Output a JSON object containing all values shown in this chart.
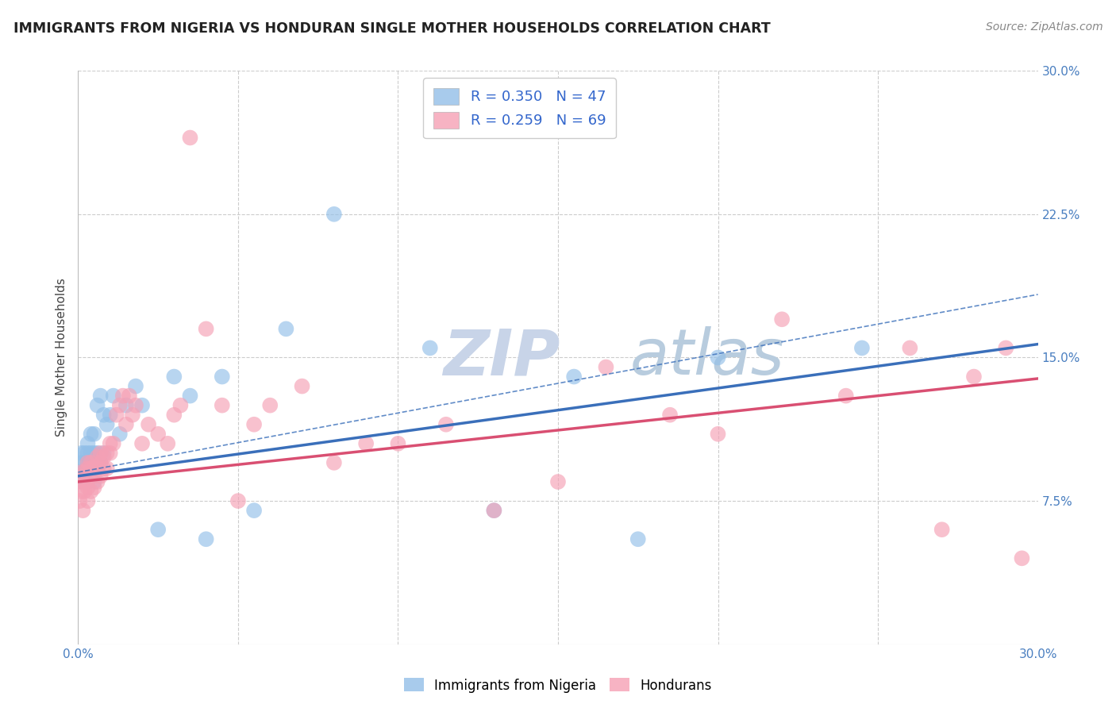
{
  "title": "IMMIGRANTS FROM NIGERIA VS HONDURAN SINGLE MOTHER HOUSEHOLDS CORRELATION CHART",
  "source": "Source: ZipAtlas.com",
  "ylabel": "Single Mother Households",
  "xlim": [
    0.0,
    0.3
  ],
  "ylim": [
    0.0,
    0.3
  ],
  "ytick_labels_right": [
    "30.0%",
    "22.5%",
    "15.0%",
    "7.5%"
  ],
  "ytick_positions_right": [
    0.3,
    0.225,
    0.15,
    0.075
  ],
  "nigeria_color": "#92bfe8",
  "honduras_color": "#f5a0b5",
  "nigeria_line_color": "#3a6fba",
  "honduras_line_color": "#d94f72",
  "grid_color": "#cccccc",
  "watermark_color": "#c8d4e8",
  "nigeria_label": "R = 0.350   N = 47",
  "honduras_label": "R = 0.259   N = 69",
  "legend_nigeria_color": "#92bfe8",
  "legend_honduras_color": "#f5a0b5",
  "bottom_legend_nigeria": "Immigrants from Nigeria",
  "bottom_legend_honduras": "Hondurans",
  "nigeria_x": [
    0.0005,
    0.001,
    0.001,
    0.0015,
    0.002,
    0.002,
    0.0025,
    0.003,
    0.003,
    0.003,
    0.003,
    0.003,
    0.004,
    0.004,
    0.004,
    0.004,
    0.005,
    0.005,
    0.005,
    0.005,
    0.006,
    0.006,
    0.007,
    0.007,
    0.008,
    0.008,
    0.009,
    0.01,
    0.011,
    0.013,
    0.015,
    0.018,
    0.02,
    0.025,
    0.03,
    0.035,
    0.04,
    0.045,
    0.055,
    0.065,
    0.08,
    0.11,
    0.13,
    0.155,
    0.175,
    0.2,
    0.245
  ],
  "nigeria_y": [
    0.09,
    0.095,
    0.1,
    0.085,
    0.09,
    0.1,
    0.095,
    0.085,
    0.092,
    0.095,
    0.1,
    0.105,
    0.09,
    0.095,
    0.1,
    0.11,
    0.085,
    0.095,
    0.1,
    0.11,
    0.1,
    0.125,
    0.095,
    0.13,
    0.1,
    0.12,
    0.115,
    0.12,
    0.13,
    0.11,
    0.125,
    0.135,
    0.125,
    0.06,
    0.14,
    0.13,
    0.055,
    0.14,
    0.07,
    0.165,
    0.225,
    0.155,
    0.07,
    0.14,
    0.055,
    0.15,
    0.155
  ],
  "honduras_x": [
    0.0005,
    0.001,
    0.001,
    0.001,
    0.0015,
    0.002,
    0.002,
    0.002,
    0.003,
    0.003,
    0.003,
    0.003,
    0.003,
    0.004,
    0.004,
    0.004,
    0.004,
    0.005,
    0.005,
    0.005,
    0.006,
    0.006,
    0.006,
    0.007,
    0.007,
    0.007,
    0.008,
    0.008,
    0.009,
    0.009,
    0.01,
    0.01,
    0.011,
    0.012,
    0.013,
    0.014,
    0.015,
    0.016,
    0.017,
    0.018,
    0.02,
    0.022,
    0.025,
    0.028,
    0.03,
    0.032,
    0.035,
    0.04,
    0.045,
    0.05,
    0.055,
    0.06,
    0.07,
    0.08,
    0.09,
    0.1,
    0.115,
    0.13,
    0.15,
    0.165,
    0.185,
    0.2,
    0.22,
    0.24,
    0.26,
    0.27,
    0.28,
    0.29,
    0.295
  ],
  "honduras_y": [
    0.075,
    0.08,
    0.085,
    0.09,
    0.07,
    0.08,
    0.085,
    0.09,
    0.075,
    0.082,
    0.088,
    0.092,
    0.095,
    0.08,
    0.088,
    0.092,
    0.095,
    0.082,
    0.088,
    0.093,
    0.085,
    0.092,
    0.098,
    0.088,
    0.095,
    0.1,
    0.092,
    0.098,
    0.092,
    0.1,
    0.1,
    0.105,
    0.105,
    0.12,
    0.125,
    0.13,
    0.115,
    0.13,
    0.12,
    0.125,
    0.105,
    0.115,
    0.11,
    0.105,
    0.12,
    0.125,
    0.265,
    0.165,
    0.125,
    0.075,
    0.115,
    0.125,
    0.135,
    0.095,
    0.105,
    0.105,
    0.115,
    0.07,
    0.085,
    0.145,
    0.12,
    0.11,
    0.17,
    0.13,
    0.155,
    0.06,
    0.14,
    0.155,
    0.045
  ],
  "nigeria_intercept": 0.088,
  "nigeria_slope": 0.23,
  "honduras_intercept": 0.085,
  "honduras_slope": 0.18
}
